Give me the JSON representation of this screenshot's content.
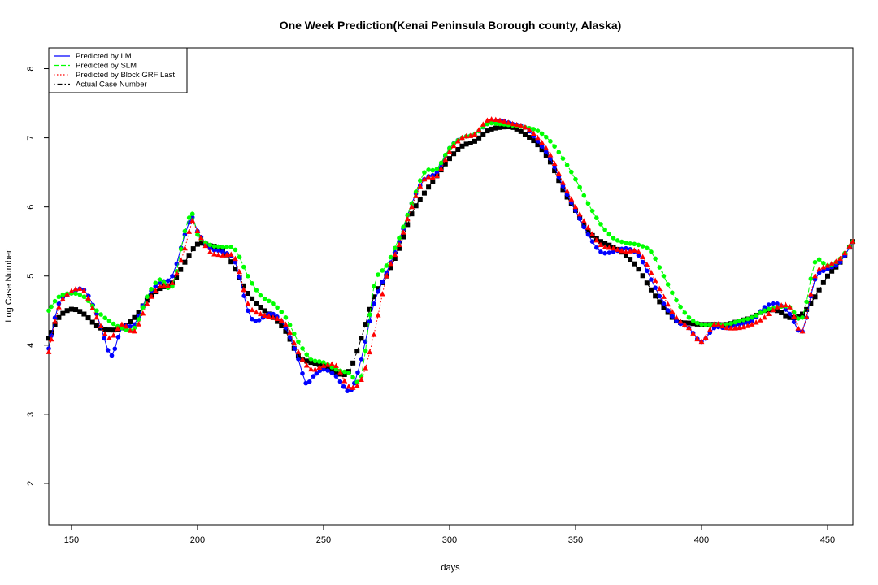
{
  "chart_data": {
    "type": "scatter",
    "title": "One Week Prediction(Kenai Peninsula Borough county, Alaska)",
    "xlabel": "days",
    "ylabel": "Log Case Number",
    "xlim": [
      141,
      460
    ],
    "ylim": [
      1.4,
      8.3
    ],
    "xticks": [
      150,
      200,
      250,
      300,
      350,
      400,
      450
    ],
    "yticks": [
      2,
      3,
      4,
      5,
      6,
      7,
      8
    ],
    "legend_position": "top-left",
    "grid": false,
    "series": [
      {
        "name": "Actual Case Number",
        "color": "#000000",
        "line": "dotdash",
        "marker": "square",
        "x": [
          141,
          145,
          150,
          155,
          160,
          165,
          170,
          175,
          180,
          185,
          190,
          195,
          200,
          205,
          210,
          215,
          220,
          225,
          230,
          235,
          240,
          245,
          250,
          255,
          260,
          265,
          270,
          275,
          280,
          285,
          290,
          295,
          300,
          305,
          310,
          315,
          320,
          325,
          330,
          335,
          340,
          345,
          350,
          355,
          360,
          365,
          370,
          375,
          380,
          385,
          390,
          395,
          400,
          405,
          410,
          415,
          420,
          425,
          430,
          435,
          440,
          445,
          450,
          455,
          460
        ],
        "y": [
          4.1,
          4.4,
          4.52,
          4.45,
          4.28,
          4.22,
          4.25,
          4.4,
          4.65,
          4.82,
          4.9,
          5.2,
          5.46,
          5.44,
          5.38,
          5.1,
          4.75,
          4.55,
          4.4,
          4.2,
          3.85,
          3.75,
          3.7,
          3.6,
          3.62,
          4.1,
          4.7,
          5.0,
          5.4,
          5.9,
          6.2,
          6.45,
          6.7,
          6.88,
          6.95,
          7.1,
          7.15,
          7.15,
          7.05,
          6.9,
          6.65,
          6.25,
          5.95,
          5.65,
          5.5,
          5.42,
          5.3,
          5.1,
          4.8,
          4.55,
          4.35,
          4.32,
          4.3,
          4.3,
          4.3,
          4.35,
          4.4,
          4.5,
          4.5,
          4.4,
          4.45,
          4.7,
          5.0,
          5.2,
          5.5
        ]
      },
      {
        "name": "Predicted by LM",
        "color": "#0000ff",
        "line": "solid",
        "marker": "circle",
        "x": [
          141,
          145,
          150,
          155,
          160,
          163,
          166,
          170,
          175,
          180,
          185,
          190,
          195,
          198,
          200,
          205,
          210,
          215,
          220,
          223,
          226,
          230,
          235,
          240,
          243,
          246,
          250,
          255,
          258,
          261,
          265,
          270,
          275,
          280,
          285,
          290,
          295,
          300,
          305,
          310,
          315,
          320,
          325,
          330,
          335,
          340,
          345,
          350,
          355,
          360,
          365,
          370,
          375,
          380,
          385,
          390,
          395,
          400,
          405,
          410,
          415,
          420,
          425,
          430,
          435,
          440,
          445,
          450,
          455,
          460
        ],
        "y": [
          3.95,
          4.6,
          4.75,
          4.8,
          4.45,
          4.1,
          3.85,
          4.25,
          4.3,
          4.7,
          4.9,
          5.0,
          5.6,
          5.85,
          5.65,
          5.4,
          5.35,
          5.2,
          4.5,
          4.35,
          4.4,
          4.45,
          4.25,
          3.8,
          3.45,
          3.55,
          3.65,
          3.55,
          3.4,
          3.35,
          3.8,
          4.6,
          5.05,
          5.5,
          6.05,
          6.4,
          6.5,
          6.85,
          7.0,
          7.05,
          7.2,
          7.25,
          7.2,
          7.15,
          6.95,
          6.7,
          6.3,
          5.95,
          5.6,
          5.35,
          5.35,
          5.4,
          5.3,
          4.95,
          4.6,
          4.35,
          4.25,
          4.05,
          4.25,
          4.25,
          4.3,
          4.35,
          4.55,
          4.6,
          4.45,
          4.2,
          4.95,
          5.1,
          5.2,
          5.5
        ]
      },
      {
        "name": "Predicted by SLM",
        "color": "#00ff00",
        "line": "dashed",
        "marker": "circle",
        "x": [
          141,
          145,
          150,
          155,
          160,
          165,
          170,
          175,
          180,
          185,
          190,
          195,
          198,
          200,
          205,
          210,
          215,
          220,
          225,
          230,
          235,
          240,
          245,
          250,
          255,
          260,
          265,
          270,
          275,
          280,
          285,
          290,
          295,
          300,
          305,
          310,
          315,
          320,
          325,
          330,
          335,
          340,
          345,
          350,
          355,
          360,
          365,
          370,
          375,
          380,
          385,
          390,
          395,
          400,
          405,
          410,
          415,
          420,
          425,
          430,
          435,
          440,
          445,
          450,
          455,
          460
        ],
        "y": [
          4.5,
          4.7,
          4.75,
          4.7,
          4.5,
          4.35,
          4.25,
          4.25,
          4.7,
          4.95,
          4.85,
          5.65,
          5.9,
          5.6,
          5.45,
          5.42,
          5.38,
          5.0,
          4.72,
          4.6,
          4.4,
          4.05,
          3.8,
          3.75,
          3.65,
          3.6,
          3.55,
          4.85,
          5.15,
          5.55,
          6.05,
          6.5,
          6.55,
          6.85,
          7.0,
          7.05,
          7.2,
          7.2,
          7.18,
          7.15,
          7.1,
          6.95,
          6.7,
          6.4,
          6.05,
          5.75,
          5.55,
          5.48,
          5.45,
          5.35,
          5.0,
          4.65,
          4.4,
          4.3,
          4.3,
          4.3,
          4.35,
          4.4,
          4.5,
          4.55,
          4.55,
          4.4,
          5.2,
          5.15,
          5.25,
          5.5
        ]
      },
      {
        "name": "Predicted by Block GRF Last",
        "color": "#ff0000",
        "line": "dotted",
        "marker": "triangle",
        "x": [
          141,
          145,
          150,
          155,
          160,
          165,
          170,
          175,
          180,
          185,
          190,
          195,
          198,
          200,
          205,
          210,
          215,
          220,
          225,
          230,
          235,
          240,
          245,
          250,
          255,
          260,
          265,
          270,
          275,
          280,
          285,
          290,
          295,
          300,
          305,
          310,
          315,
          320,
          325,
          330,
          335,
          340,
          345,
          350,
          355,
          360,
          365,
          370,
          375,
          380,
          385,
          390,
          395,
          400,
          405,
          410,
          415,
          420,
          425,
          430,
          435,
          440,
          445,
          450,
          455,
          460
        ],
        "y": [
          3.9,
          4.55,
          4.78,
          4.78,
          4.4,
          4.1,
          4.3,
          4.2,
          4.6,
          4.85,
          4.9,
          5.4,
          5.8,
          5.65,
          5.35,
          5.3,
          5.25,
          4.6,
          4.45,
          4.4,
          4.3,
          3.9,
          3.65,
          3.7,
          3.7,
          3.4,
          3.5,
          4.15,
          5.0,
          5.45,
          6.0,
          6.4,
          6.45,
          6.8,
          7.0,
          7.05,
          7.25,
          7.25,
          7.2,
          7.15,
          7.0,
          6.75,
          6.35,
          6.0,
          5.7,
          5.45,
          5.4,
          5.35,
          5.35,
          5.05,
          4.7,
          4.4,
          4.25,
          4.05,
          4.3,
          4.25,
          4.25,
          4.3,
          4.4,
          4.55,
          4.55,
          4.2,
          5.0,
          5.15,
          5.25,
          5.5
        ]
      }
    ]
  }
}
